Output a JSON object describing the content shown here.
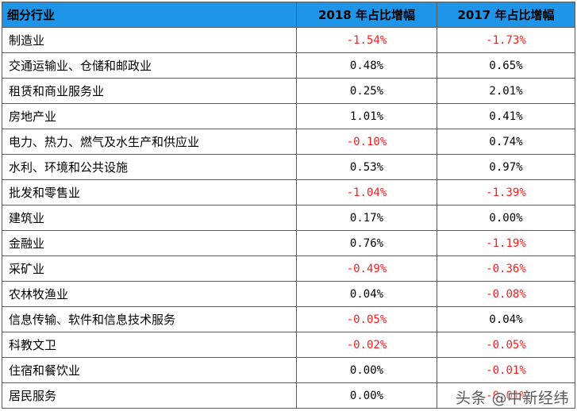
{
  "table": {
    "headers": [
      "细分行业",
      "2018 年占比增幅",
      "2017 年占比增幅"
    ],
    "rows": [
      {
        "name": "制造业",
        "v2018": "-1.54%",
        "v2017": "-1.73%",
        "neg2018": true,
        "neg2017": true
      },
      {
        "name": "交通运输业、仓储和邮政业",
        "v2018": "0.48%",
        "v2017": "0.65%",
        "neg2018": false,
        "neg2017": false
      },
      {
        "name": "租赁和商业服务业",
        "v2018": "0.25%",
        "v2017": "2.01%",
        "neg2018": false,
        "neg2017": false
      },
      {
        "name": "房地产业",
        "v2018": "1.01%",
        "v2017": "0.41%",
        "neg2018": false,
        "neg2017": false
      },
      {
        "name": "电力、热力、燃气及水生产和供应业",
        "v2018": "-0.10%",
        "v2017": "0.74%",
        "neg2018": true,
        "neg2017": false
      },
      {
        "name": "水利、环境和公共设施",
        "v2018": "0.53%",
        "v2017": "0.97%",
        "neg2018": false,
        "neg2017": false
      },
      {
        "name": "批发和零售业",
        "v2018": "-1.04%",
        "v2017": "-1.39%",
        "neg2018": true,
        "neg2017": true
      },
      {
        "name": "建筑业",
        "v2018": "0.17%",
        "v2017": "0.00%",
        "neg2018": false,
        "neg2017": false
      },
      {
        "name": "金融业",
        "v2018": "0.76%",
        "v2017": "-1.19%",
        "neg2018": false,
        "neg2017": true
      },
      {
        "name": "采矿业",
        "v2018": "-0.49%",
        "v2017": "-0.36%",
        "neg2018": true,
        "neg2017": true
      },
      {
        "name": "农林牧渔业",
        "v2018": "0.04%",
        "v2017": "-0.08%",
        "neg2018": false,
        "neg2017": true
      },
      {
        "name": "信息传输、软件和信息技术服务",
        "v2018": "-0.05%",
        "v2017": "0.04%",
        "neg2018": true,
        "neg2017": false
      },
      {
        "name": "科教文卫",
        "v2018": "-0.02%",
        "v2017": "-0.05%",
        "neg2018": true,
        "neg2017": true
      },
      {
        "name": "住宿和餐饮业",
        "v2018": "0.00%",
        "v2017": "-0.01%",
        "neg2018": false,
        "neg2017": true
      },
      {
        "name": "居民服务",
        "v2018": "0.00%",
        "v2017": "-0.01%",
        "neg2018": false,
        "neg2017": true
      }
    ]
  },
  "colors": {
    "header_bg": "#1f95e8",
    "negative": "#ff1a1a",
    "border": "#5a5a5a"
  },
  "watermark": "头条 @中新经纬"
}
